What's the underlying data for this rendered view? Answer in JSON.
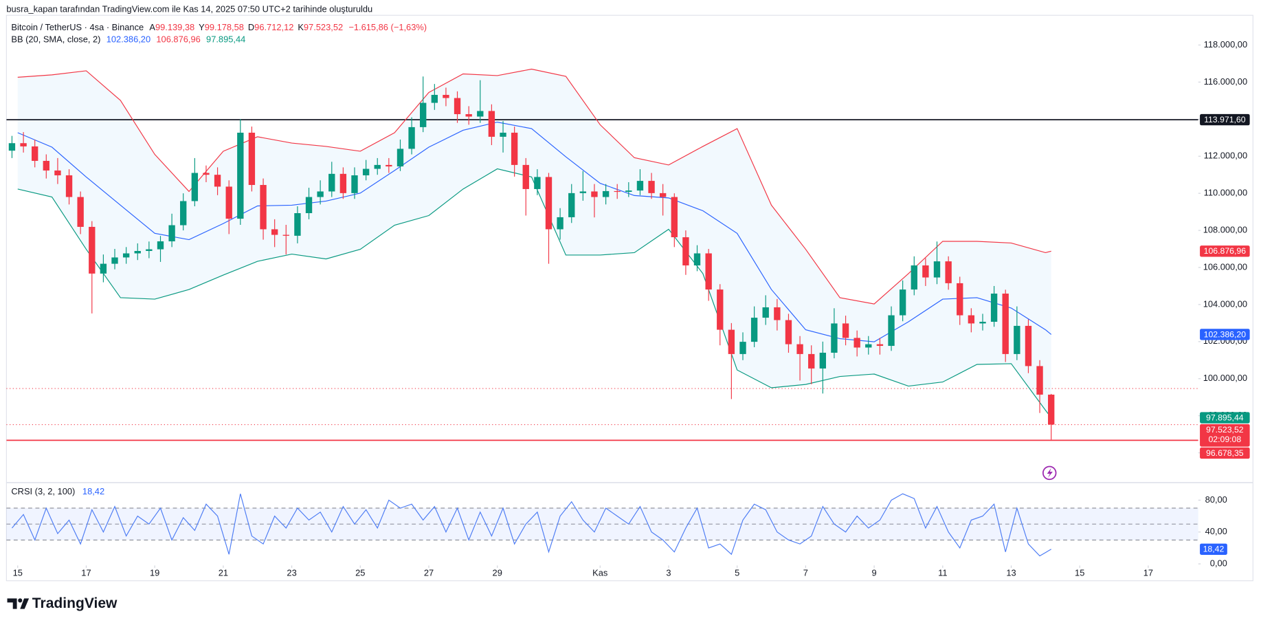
{
  "header": {
    "attribution": "busra_kapan tarafından TradingView.com ile Kas 14, 2025 07:50 UTC+2 tarihinde oluşturuldu"
  },
  "footer": {
    "logo": "TradingView"
  },
  "chart_data": [
    {
      "type": "candlestick",
      "title": "Bitcoin / TetherUS · 4sa · Binance",
      "ohlc_legend": [
        {
          "key": "A",
          "label": "99.139,38"
        },
        {
          "key": "Y",
          "label": "99.178,58"
        },
        {
          "key": "D",
          "label": "96.712,12"
        },
        {
          "key": "K",
          "label": "97.523,52"
        }
      ],
      "change_label": "−1.615,86 (−1,63%)",
      "close_label": "97.523,52",
      "countdown": "02:09:08",
      "up_color": "#089981",
      "down_color": "#f23645",
      "x": [
        -0.167,
        0.167,
        0.5,
        0.833,
        1.167,
        1.5,
        1.833,
        2.167,
        2.5,
        2.833,
        3.167,
        3.5,
        3.833,
        4.167,
        4.5,
        4.833,
        5.167,
        5.5,
        5.833,
        6.167,
        6.5,
        6.833,
        7.167,
        7.5,
        7.833,
        8.167,
        8.5,
        8.833,
        9.167,
        9.5,
        9.833,
        10.167,
        10.5,
        10.833,
        11.167,
        11.5,
        11.833,
        12.167,
        12.5,
        12.833,
        13.167,
        13.5,
        13.833,
        14.167,
        14.5,
        14.833,
        15.167,
        15.5,
        15.833,
        16.167,
        16.5,
        16.833,
        17.167,
        17.5,
        17.833,
        18.167,
        18.5,
        18.833,
        19.167,
        19.5,
        19.833,
        20.167,
        20.5,
        20.833,
        21.167,
        21.5,
        21.833,
        22.167,
        22.5,
        22.833,
        23.167,
        23.5,
        23.833,
        24.167,
        24.5,
        24.833,
        25.167,
        25.5,
        25.833,
        26.167,
        26.5,
        26.833,
        27.167,
        27.5,
        27.833,
        28.167,
        28.5,
        28.833,
        29.167,
        29.5,
        29.833,
        30.167
      ],
      "open": [
        112300,
        112705,
        112530,
        111750,
        111230,
        110970,
        109800,
        108190,
        105670,
        106200,
        106540,
        106760,
        106890,
        106980,
        107410,
        108280,
        109580,
        111100,
        111000,
        110360,
        108630,
        113270,
        110450,
        108060,
        107760,
        107710,
        108930,
        109800,
        110100,
        111050,
        110010,
        110970,
        111320,
        111530,
        111450,
        112400,
        113570,
        114880,
        115310,
        115140,
        114270,
        114140,
        114440,
        113050,
        113270,
        111530,
        110230,
        110880,
        108060,
        108710,
        110010,
        110100,
        109800,
        110120,
        110080,
        110150,
        110670,
        110010,
        109800,
        107630,
        106110,
        106760,
        104810,
        102640,
        101330,
        101990,
        103290,
        103850,
        103160,
        101860,
        101330,
        100550,
        101400,
        102980,
        102200,
        101680,
        101860,
        101770,
        103420,
        104810,
        106110,
        105460,
        106330,
        105150,
        103420,
        102980,
        103070,
        104590,
        101330,
        102850,
        100680,
        99139.38
      ],
      "high": [
        113100,
        113300,
        112900,
        112100,
        111900,
        111300,
        110100,
        108500,
        106700,
        107000,
        107100,
        107300,
        107400,
        107700,
        108900,
        110000,
        111900,
        111500,
        111400,
        110700,
        114000,
        113600,
        110800,
        108600,
        108300,
        109300,
        110300,
        110700,
        111700,
        111400,
        111400,
        111800,
        111900,
        111900,
        112900,
        114100,
        116300,
        115900,
        115700,
        115500,
        114700,
        116100,
        114800,
        113900,
        113600,
        111900,
        111300,
        111100,
        109200,
        110500,
        111200,
        110500,
        110500,
        110500,
        110600,
        111300,
        111100,
        110500,
        110000,
        108000,
        107200,
        107000,
        105100,
        103000,
        102500,
        103900,
        104500,
        104300,
        103500,
        102300,
        101800,
        102000,
        103800,
        103400,
        102600,
        102300,
        102200,
        103900,
        105300,
        106600,
        106500,
        107400,
        106600,
        105500,
        103800,
        103500,
        105000,
        104800,
        103900,
        103200,
        101000,
        99178.58
      ],
      "low": [
        111900,
        112200,
        111400,
        110800,
        110500,
        109400,
        107800,
        103520,
        105200,
        105900,
        106200,
        106400,
        106500,
        106300,
        107100,
        108000,
        109300,
        110600,
        109900,
        107800,
        108300,
        110100,
        107500,
        107100,
        106700,
        107300,
        108600,
        109400,
        109800,
        109700,
        109700,
        110700,
        111000,
        111100,
        111200,
        112100,
        113300,
        114500,
        114700,
        113800,
        113700,
        113800,
        112600,
        112200,
        110900,
        108800,
        109900,
        106200,
        107500,
        108400,
        109600,
        108700,
        109400,
        109700,
        109800,
        109900,
        109700,
        108800,
        107100,
        105600,
        105800,
        104200,
        101800,
        98900,
        101000,
        101700,
        102900,
        102600,
        101400,
        99900,
        99700,
        99200,
        101100,
        101800,
        101200,
        101300,
        101300,
        101500,
        103100,
        104500,
        105000,
        105100,
        104800,
        102900,
        102500,
        102600,
        102800,
        100900,
        101000,
        100300,
        98150,
        96712.12
      ],
      "close": [
        112705,
        112530,
        111750,
        111230,
        110970,
        109800,
        108190,
        105670,
        106200,
        106540,
        106760,
        106890,
        106980,
        107410,
        108280,
        109580,
        111100,
        111000,
        110360,
        108630,
        113270,
        110450,
        108060,
        107760,
        107710,
        108930,
        109800,
        110100,
        111050,
        110010,
        110970,
        111320,
        111530,
        111450,
        112400,
        113570,
        114880,
        115310,
        115140,
        114270,
        114140,
        114440,
        113050,
        113270,
        111530,
        110230,
        110880,
        108060,
        108710,
        110010,
        110100,
        109800,
        110120,
        110080,
        110150,
        110670,
        110010,
        109800,
        107630,
        106110,
        106760,
        104810,
        102640,
        101330,
        101990,
        103290,
        103850,
        103160,
        101860,
        101330,
        100550,
        101400,
        102980,
        102200,
        101680,
        101860,
        101770,
        103420,
        104810,
        106110,
        105460,
        106330,
        105150,
        103420,
        102980,
        103070,
        104590,
        101330,
        102850,
        100680,
        99140,
        97523.52
      ],
      "indicator": {
        "name": "BB (20, SMA, close, 2)",
        "fill_color": "rgba(33,150,243,0.06)",
        "x": [
          0,
          1,
          2,
          3,
          4,
          5,
          6,
          7,
          8,
          9,
          10,
          11,
          12,
          13,
          14,
          15,
          16,
          17,
          18,
          19,
          20,
          21,
          22,
          23,
          24,
          25,
          26,
          27,
          28,
          29,
          30,
          30.167
        ],
        "series": [
          {
            "color": "#2962ff",
            "label": "102.386,20",
            "values": [
              113270,
              112490,
              110880,
              109360,
              107840,
              107500,
              108370,
              109320,
              109360,
              109580,
              110010,
              111230,
              112490,
              113400,
              113840,
              113490,
              111970,
              110540,
              109880,
              109750,
              109060,
              107840,
              104810,
              102640,
              102160,
              101990,
              103070,
              104290,
              104370,
              103810,
              102640,
              102386.2
            ]
          },
          {
            "color": "#f23645",
            "label": "106.876,96",
            "values": [
              116260,
              116390,
              116610,
              115010,
              112100,
              110100,
              112270,
              113050,
              112710,
              112530,
              112270,
              113270,
              115440,
              116440,
              116350,
              116700,
              116310,
              113700,
              111920,
              111530,
              112530,
              113490,
              109360,
              106980,
              104370,
              104030,
              105670,
              107410,
              107410,
              107320,
              106800,
              106876.96
            ]
          },
          {
            "color": "#089981",
            "label": "97.895,44",
            "values": [
              110230,
              109800,
              106980,
              104370,
              104290,
              104810,
              105590,
              106330,
              106720,
              106460,
              106980,
              108280,
              108800,
              110230,
              111320,
              110880,
              106670,
              106670,
              106800,
              108060,
              105670,
              100470,
              99510,
              99690,
              100120,
              100250,
              99600,
              99820,
              100770,
              100810,
              98300,
              97895.44
            ]
          }
        ]
      },
      "levels": [
        {
          "value": 113971.6,
          "label": "113.971,60",
          "color": "#131722",
          "style": "solid"
        },
        {
          "value": 96678.35,
          "label": "96.678,35",
          "color": "#f23645",
          "style": "solid"
        },
        {
          "value": 99470,
          "color": "#f23645",
          "style": "dotted"
        }
      ],
      "xlim": [
        -0.329,
        34.46
      ],
      "xticks": [
        {
          "value": 0,
          "label": "15"
        },
        {
          "value": 2,
          "label": "17"
        },
        {
          "value": 4,
          "label": "19"
        },
        {
          "value": 6,
          "label": "21"
        },
        {
          "value": 8,
          "label": "23"
        },
        {
          "value": 10,
          "label": "25"
        },
        {
          "value": 12,
          "label": "27"
        },
        {
          "value": 14,
          "label": "29"
        },
        {
          "value": 17,
          "label": "Kas"
        },
        {
          "value": 19,
          "label": "3"
        },
        {
          "value": 21,
          "label": "5"
        },
        {
          "value": 23,
          "label": "7"
        },
        {
          "value": 25,
          "label": "9"
        },
        {
          "value": 27,
          "label": "11"
        },
        {
          "value": 29,
          "label": "13"
        },
        {
          "value": 31,
          "label": "15"
        },
        {
          "value": 33,
          "label": "17"
        }
      ],
      "ylim": [
        94480,
        119560
      ],
      "yticks": [
        {
          "value": 118000,
          "label": "118.000,00"
        },
        {
          "value": 116000,
          "label": "116.000,00"
        },
        {
          "value": 114000,
          "label": "114.000,00"
        },
        {
          "value": 112000,
          "label": "112.000,00"
        },
        {
          "value": 110000,
          "label": "110.000,00"
        },
        {
          "value": 108000,
          "label": "108.000,00"
        },
        {
          "value": 106000,
          "label": "106.000,00"
        },
        {
          "value": 104000,
          "label": "104.000,00"
        },
        {
          "value": 102000,
          "label": "102.000,00"
        },
        {
          "value": 100000,
          "label": "100.000,00"
        },
        {
          "value": 98000,
          "label": "98.000,00"
        },
        {
          "value": 96000,
          "label": "96.000,00"
        }
      ],
      "grid": false
    },
    {
      "type": "line",
      "title": "CRSI (3, 2, 100)",
      "color": "#4d7cf4",
      "value_label": "18,42",
      "values": [
        45,
        62,
        30,
        70,
        38,
        55,
        25,
        68,
        40,
        72,
        35,
        60,
        50,
        70,
        30,
        58,
        42,
        75,
        60,
        12,
        88,
        35,
        25,
        60,
        45,
        70,
        55,
        65,
        40,
        72,
        50,
        68,
        45,
        80,
        70,
        75,
        55,
        72,
        40,
        70,
        30,
        65,
        35,
        70,
        25,
        50,
        65,
        15,
        60,
        78,
        55,
        40,
        70,
        60,
        50,
        72,
        40,
        30,
        15,
        45,
        70,
        20,
        25,
        12,
        55,
        75,
        68,
        40,
        30,
        25,
        35,
        72,
        50,
        40,
        60,
        45,
        55,
        80,
        88,
        82,
        45,
        72,
        40,
        20,
        55,
        60,
        75,
        15,
        70,
        25,
        10,
        18.42
      ],
      "band_levels": [
        70,
        50,
        30
      ],
      "band_color": "rgba(41,98,255,0.07)",
      "ylim": [
        -2,
        101
      ],
      "yticks": [
        {
          "value": 80,
          "label": "80,00"
        },
        {
          "value": 40,
          "label": "40,00"
        },
        {
          "value": 0,
          "label": "0,00"
        }
      ],
      "grid": false
    }
  ]
}
